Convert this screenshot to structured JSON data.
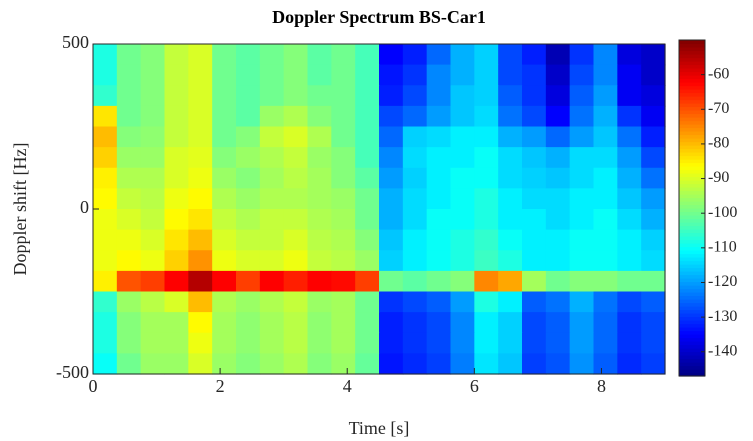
{
  "chart_data": {
    "type": "heatmap",
    "title": "Doppler Spectrum BS-Car1",
    "x_label": "Time [s]",
    "y_label": "Doppler shift [Hz]",
    "colormap": "jet",
    "xlim": [
      0,
      9
    ],
    "xticks": [
      0,
      2,
      4,
      6,
      8
    ],
    "ylim": [
      -500,
      500
    ],
    "yticks": [
      -500,
      0,
      500
    ],
    "clim": [
      -147,
      -50
    ],
    "cticks": [
      -60,
      -70,
      -80,
      -90,
      -100,
      -110,
      -120,
      -130,
      -140
    ],
    "x": [
      0.1875,
      0.5625,
      0.9375,
      1.3125,
      1.6875,
      2.0625,
      2.4375,
      2.8125,
      3.1875,
      3.5625,
      3.9375,
      4.3125,
      4.6875,
      5.0625,
      5.4375,
      5.8125,
      6.1875,
      6.5625,
      6.9375,
      7.3125,
      7.6875,
      8.0625,
      8.4375,
      8.8125
    ],
    "y": [
      468.75,
      406.25,
      343.75,
      281.25,
      218.75,
      156.25,
      93.75,
      31.25,
      -31.25,
      -93.75,
      -156.25,
      -218.75,
      -281.25,
      -343.75,
      -406.25,
      -468.75
    ],
    "z": [
      [
        -108,
        -100,
        -98,
        -92,
        -90,
        -100,
        -102,
        -100,
        -98,
        -102,
        -100,
        -104,
        -135,
        -132,
        -125,
        -118,
        -115,
        -128,
        -132,
        -142,
        -130,
        -122,
        -138,
        -140
      ],
      [
        -108,
        -100,
        -98,
        -92,
        -90,
        -100,
        -102,
        -100,
        -98,
        -102,
        -100,
        -104,
        -133,
        -130,
        -122,
        -118,
        -115,
        -128,
        -130,
        -140,
        -128,
        -122,
        -136,
        -140
      ],
      [
        -106,
        -100,
        -98,
        -92,
        -90,
        -100,
        -102,
        -100,
        -98,
        -100,
        -100,
        -104,
        -132,
        -128,
        -122,
        -116,
        -115,
        -126,
        -130,
        -138,
        -126,
        -120,
        -136,
        -138
      ],
      [
        -84,
        -100,
        -98,
        -92,
        -90,
        -100,
        -102,
        -96,
        -94,
        -98,
        -100,
        -104,
        -128,
        -125,
        -120,
        -116,
        -114,
        -124,
        -128,
        -135,
        -124,
        -118,
        -130,
        -136
      ],
      [
        -80,
        -98,
        -97,
        -92,
        -90,
        -100,
        -98,
        -92,
        -90,
        -94,
        -100,
        -104,
        -125,
        -115,
        -114,
        -112,
        -112,
        -118,
        -120,
        -125,
        -120,
        -116,
        -124,
        -132
      ],
      [
        -82,
        -96,
        -96,
        -90,
        -89,
        -98,
        -96,
        -94,
        -92,
        -96,
        -98,
        -104,
        -122,
        -114,
        -112,
        -112,
        -110,
        -114,
        -116,
        -118,
        -114,
        -114,
        -120,
        -128
      ],
      [
        -85,
        -94,
        -94,
        -90,
        -88,
        -96,
        -98,
        -95,
        -93,
        -95,
        -98,
        -102,
        -120,
        -115,
        -112,
        -110,
        -110,
        -114,
        -115,
        -116,
        -114,
        -112,
        -118,
        -124
      ],
      [
        -86,
        -92,
        -93,
        -88,
        -86,
        -94,
        -96,
        -94,
        -94,
        -95,
        -96,
        -100,
        -118,
        -114,
        -112,
        -110,
        -108,
        -112,
        -114,
        -114,
        -112,
        -112,
        -116,
        -120
      ],
      [
        -88,
        -90,
        -92,
        -86,
        -84,
        -92,
        -94,
        -92,
        -92,
        -94,
        -95,
        -100,
        -118,
        -114,
        -110,
        -110,
        -108,
        -112,
        -112,
        -114,
        -112,
        -110,
        -114,
        -118
      ],
      [
        -88,
        -88,
        -90,
        -84,
        -80,
        -90,
        -92,
        -92,
        -90,
        -93,
        -94,
        -98,
        -116,
        -112,
        -110,
        -108,
        -106,
        -110,
        -112,
        -112,
        -110,
        -110,
        -112,
        -115
      ],
      [
        -88,
        -86,
        -88,
        -82,
        -76,
        -88,
        -90,
        -90,
        -88,
        -92,
        -93,
        -96,
        -115,
        -112,
        -110,
        -108,
        -105,
        -108,
        -112,
        -112,
        -110,
        -110,
        -112,
        -114
      ],
      [
        -85,
        -70,
        -68,
        -62,
        -55,
        -62,
        -68,
        -62,
        -65,
        -62,
        -63,
        -68,
        -100,
        -102,
        -100,
        -98,
        -75,
        -78,
        -95,
        -100,
        -98,
        -98,
        -100,
        -100
      ],
      [
        -106,
        -96,
        -93,
        -90,
        -80,
        -94,
        -96,
        -94,
        -92,
        -96,
        -95,
        -100,
        -130,
        -128,
        -126,
        -120,
        -108,
        -112,
        -126,
        -124,
        -118,
        -124,
        -128,
        -126
      ],
      [
        -108,
        -98,
        -95,
        -95,
        -86,
        -95,
        -97,
        -95,
        -93,
        -97,
        -95,
        -100,
        -132,
        -130,
        -128,
        -122,
        -112,
        -115,
        -128,
        -126,
        -120,
        -125,
        -130,
        -128
      ],
      [
        -108,
        -98,
        -95,
        -95,
        -88,
        -95,
        -97,
        -95,
        -93,
        -97,
        -95,
        -100,
        -132,
        -130,
        -128,
        -122,
        -112,
        -115,
        -128,
        -126,
        -120,
        -125,
        -130,
        -128
      ],
      [
        -110,
        -100,
        -96,
        -96,
        -90,
        -96,
        -98,
        -96,
        -94,
        -98,
        -96,
        -101,
        -133,
        -131,
        -129,
        -123,
        -113,
        -116,
        -129,
        -127,
        -121,
        -126,
        -131,
        -129
      ]
    ]
  }
}
